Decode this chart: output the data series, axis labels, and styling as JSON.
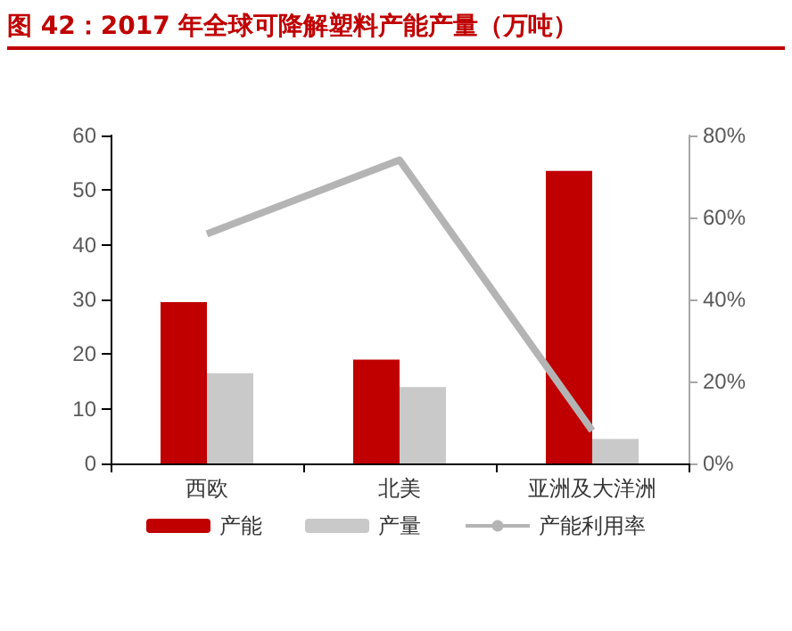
{
  "chart_data": {
    "type": "bar",
    "title": "图 42：2017 年全球可降解塑料产能产量（万吨）",
    "categories": [
      "西欧",
      "北美",
      "亚洲及大洋洲"
    ],
    "series": [
      {
        "name": "产能",
        "color": "#c00000",
        "values": [
          29.5,
          19,
          53.5
        ]
      },
      {
        "name": "产量",
        "color": "#c9c9c9",
        "values": [
          16.5,
          14,
          4.5
        ]
      },
      {
        "name": "产能利用率",
        "type": "line",
        "axis": "y2",
        "color": "#b4b4b4",
        "values": [
          56,
          74,
          8
        ]
      }
    ],
    "ylim": [
      0,
      60
    ],
    "yticks": [
      0,
      10,
      20,
      30,
      40,
      50,
      60
    ],
    "y2lim": [
      0,
      80
    ],
    "y2ticks": [
      {
        "value": 0,
        "label": "0%"
      },
      {
        "value": 20,
        "label": "20%"
      },
      {
        "value": 40,
        "label": "40%"
      },
      {
        "value": 60,
        "label": "60%"
      },
      {
        "value": 80,
        "label": "80%"
      }
    ],
    "grid": false,
    "legend": "bottom",
    "marker": "none",
    "line_style": "solid"
  }
}
